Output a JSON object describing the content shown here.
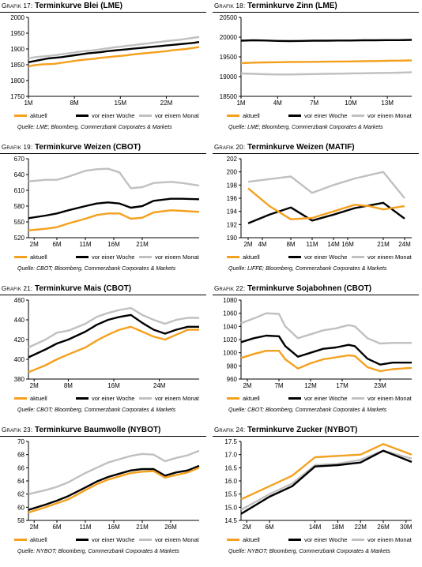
{
  "colors": {
    "aktuell": "#f5a01e",
    "woche": "#000000",
    "monat": "#c0c0c0"
  },
  "legend_labels": [
    "aktuell",
    "vor einer Woche",
    "vor einem Monat"
  ],
  "chart_data": [
    {
      "type": "line",
      "prefix": "Grafik 17:",
      "title": "Terminkurve Blei (LME)",
      "source": "Quelle: LME; Bloomberg, Commerzbank Corporates & Markets",
      "ylim": [
        1750,
        2000
      ],
      "yticks": [
        1750,
        1800,
        1850,
        1900,
        1950,
        2000
      ],
      "ytick_labels": [
        "1750",
        "1800",
        "1850",
        "1900",
        "1950",
        "2000"
      ],
      "xlim": [
        1,
        27
      ],
      "xticks": [
        1,
        8,
        15,
        22
      ],
      "xtick_labels": [
        "1M",
        "8M",
        "15M",
        "22M"
      ],
      "x": [
        1,
        2,
        3,
        4,
        5,
        6,
        7,
        8,
        9,
        10,
        11,
        12,
        13,
        14,
        15,
        16,
        17,
        18,
        19,
        20,
        21,
        22,
        23,
        24,
        25,
        26,
        27
      ],
      "series": [
        {
          "name": "aktuell",
          "values": [
            1845,
            1849,
            1851,
            1852,
            1853,
            1856,
            1859,
            1862,
            1865,
            1867,
            1869,
            1872,
            1874,
            1876,
            1878,
            1880,
            1883,
            1885,
            1887,
            1889,
            1891,
            1893,
            1896,
            1898,
            1900,
            1903,
            1906
          ]
        },
        {
          "name": "vor einer Woche",
          "values": [
            1858,
            1862,
            1866,
            1870,
            1872,
            1874,
            1877,
            1880,
            1883,
            1886,
            1888,
            1890,
            1893,
            1895,
            1897,
            1899,
            1901,
            1903,
            1905,
            1907,
            1909,
            1911,
            1913,
            1915,
            1917,
            1919,
            1922
          ]
        },
        {
          "name": "vor einem Monat",
          "values": [
            1870,
            1874,
            1876,
            1878,
            1880,
            1883,
            1886,
            1889,
            1892,
            1894,
            1896,
            1899,
            1902,
            1905,
            1907,
            1910,
            1912,
            1915,
            1917,
            1920,
            1922,
            1925,
            1927,
            1929,
            1932,
            1935,
            1938
          ]
        }
      ]
    },
    {
      "type": "line",
      "prefix": "Grafik 18:",
      "title": "Terminkurve Zinn (LME)",
      "source": "Quelle: LME; Bloomberg, Commerzbank Corporates & Markets",
      "ylim": [
        18500,
        20500
      ],
      "yticks": [
        18500,
        19000,
        19500,
        20000,
        20500
      ],
      "ytick_labels": [
        "18500",
        "19000",
        "19500",
        "20000",
        "20500"
      ],
      "xlim": [
        1,
        15
      ],
      "xticks": [
        1,
        4,
        7,
        10,
        13
      ],
      "xtick_labels": [
        "1M",
        "4M",
        "7M",
        "10M",
        "13M"
      ],
      "x": [
        1,
        2,
        3,
        4,
        5,
        6,
        7,
        8,
        9,
        10,
        11,
        12,
        13,
        14,
        15
      ],
      "series": [
        {
          "name": "aktuell",
          "values": [
            19340,
            19355,
            19360,
            19365,
            19370,
            19372,
            19375,
            19378,
            19382,
            19385,
            19390,
            19395,
            19400,
            19405,
            19410
          ]
        },
        {
          "name": "vor einer Woche",
          "values": [
            19910,
            19920,
            19915,
            19905,
            19900,
            19905,
            19910,
            19910,
            19915,
            19915,
            19920,
            19920,
            19925,
            19925,
            19930
          ]
        },
        {
          "name": "vor einem Monat",
          "values": [
            19080,
            19070,
            19060,
            19055,
            19055,
            19060,
            19065,
            19070,
            19075,
            19080,
            19085,
            19090,
            19095,
            19100,
            19110
          ]
        }
      ]
    },
    {
      "type": "line",
      "prefix": "Grafik 19:",
      "title": "Terminkurve Weizen (CBOT)",
      "source": "Quelle: CBOT; Bloomberg, Commerzbank Corporates & Markets",
      "ylim": [
        520,
        670
      ],
      "yticks": [
        520,
        550,
        580,
        610,
        640,
        670
      ],
      "ytick_labels": [
        "520",
        "550",
        "580",
        "610",
        "640",
        "670"
      ],
      "xlim": [
        1,
        31
      ],
      "xticks": [
        2,
        6,
        11,
        16,
        21
      ],
      "xtick_labels": [
        "2M",
        "6M",
        "11M",
        "16M",
        "21M"
      ],
      "x": [
        1,
        4,
        6,
        8,
        11,
        13,
        15,
        17,
        19,
        21,
        23,
        26,
        28,
        31
      ],
      "series": [
        {
          "name": "aktuell",
          "values": [
            534,
            537,
            540,
            547,
            556,
            563,
            566,
            566,
            556,
            558,
            568,
            572,
            571,
            569
          ]
        },
        {
          "name": "vor einer Woche",
          "values": [
            557,
            562,
            566,
            572,
            580,
            585,
            587,
            585,
            577,
            580,
            590,
            594,
            594,
            593
          ]
        },
        {
          "name": "vor einem Monat",
          "values": [
            627,
            630,
            630,
            636,
            647,
            650,
            651,
            644,
            614,
            616,
            624,
            626,
            624,
            619
          ]
        }
      ]
    },
    {
      "type": "line",
      "prefix": "Grafik 20:",
      "title": "Terminkurve Weizen (MATIF)",
      "source": "Quelle: LIFFE; Bloomberg, Commerzbank Corporates & Markets",
      "ylim": [
        190,
        202
      ],
      "yticks": [
        190,
        192,
        194,
        196,
        198,
        200,
        202
      ],
      "ytick_labels": [
        "190",
        "192",
        "194",
        "196",
        "198",
        "200",
        "202"
      ],
      "xlim": [
        1,
        25
      ],
      "xticks": [
        2,
        4,
        8,
        11,
        14,
        16,
        21,
        24
      ],
      "xtick_labels": [
        "2M",
        "4M",
        "8M",
        "11M",
        "14M",
        "16M",
        "21M",
        "24M"
      ],
      "x": [
        2,
        5,
        8,
        11,
        14,
        17,
        19,
        21,
        24
      ],
      "series": [
        {
          "name": "aktuell",
          "values": [
            197.5,
            194.8,
            192.8,
            193.0,
            194.0,
            195.0,
            194.8,
            194.3,
            194.8
          ]
        },
        {
          "name": "vor einer Woche",
          "values": [
            192.2,
            193.5,
            194.6,
            192.6,
            193.5,
            194.5,
            194.9,
            195.3,
            192.9
          ]
        },
        {
          "name": "vor einem Monat",
          "values": [
            198.5,
            198.9,
            199.3,
            196.8,
            198.0,
            199.0,
            199.5,
            200.0,
            196.0
          ]
        }
      ]
    },
    {
      "type": "line",
      "prefix": "Grafik 21:",
      "title": "Terminkurve Mais (CBOT)",
      "source": "Quelle: CBOT; Bloomberg, Commerzbank Corporates & Markets",
      "ylim": [
        380,
        460
      ],
      "yticks": [
        380,
        400,
        420,
        440,
        460
      ],
      "ytick_labels": [
        "380",
        "400",
        "420",
        "440",
        "460"
      ],
      "xlim": [
        1,
        31
      ],
      "xticks": [
        2,
        8,
        16,
        24
      ],
      "xtick_labels": [
        "2M",
        "8M",
        "16M",
        "24M"
      ],
      "x": [
        1,
        4,
        6,
        8,
        11,
        13,
        15,
        17,
        19,
        21,
        23,
        25,
        27,
        29,
        31
      ],
      "series": [
        {
          "name": "aktuell",
          "values": [
            387,
            394,
            400,
            405,
            412,
            419,
            425,
            430,
            433,
            428,
            423,
            420,
            425,
            430,
            430
          ]
        },
        {
          "name": "vor einer Woche",
          "values": [
            402,
            410,
            416,
            420,
            428,
            435,
            440,
            443,
            445,
            437,
            430,
            426,
            430,
            433,
            433
          ]
        },
        {
          "name": "vor einem Monat",
          "values": [
            412,
            420,
            427,
            429,
            436,
            443,
            447,
            450,
            452,
            445,
            440,
            436,
            440,
            442,
            442
          ]
        }
      ]
    },
    {
      "type": "line",
      "prefix": "Grafik 22:",
      "title": "Terminkurve Sojabohnen (CBOT)",
      "source": "Quelle: CBOT; Bloomberg, Commerzbank Corporates & Markets",
      "ylim": [
        960,
        1080
      ],
      "yticks": [
        960,
        980,
        1000,
        1020,
        1040,
        1060,
        1080
      ],
      "ytick_labels": [
        "960",
        "980",
        "1000",
        "1020",
        "1040",
        "1060",
        "1080"
      ],
      "xlim": [
        1,
        28
      ],
      "xticks": [
        2,
        7,
        12,
        17,
        23
      ],
      "xtick_labels": [
        "2M",
        "7M",
        "12M",
        "17M",
        "23M"
      ],
      "x": [
        1,
        3,
        5,
        7,
        8,
        10,
        12,
        14,
        16,
        18,
        19,
        21,
        23,
        25,
        28
      ],
      "series": [
        {
          "name": "aktuell",
          "values": [
            992,
            998,
            1003,
            1003,
            990,
            976,
            984,
            990,
            993,
            996,
            995,
            978,
            972,
            975,
            977
          ]
        },
        {
          "name": "vor einer Woche",
          "values": [
            1016,
            1022,
            1026,
            1025,
            1010,
            994,
            1000,
            1006,
            1008,
            1012,
            1010,
            991,
            982,
            985,
            985
          ]
        },
        {
          "name": "vor einem Monat",
          "values": [
            1045,
            1052,
            1060,
            1059,
            1040,
            1022,
            1028,
            1034,
            1037,
            1042,
            1040,
            1022,
            1014,
            1015,
            1015
          ]
        }
      ]
    },
    {
      "type": "line",
      "prefix": "Grafik 23:",
      "title": "Terminkurve Baumwolle (NYBOT)",
      "source": "Quelle: NYBOT; Bloomberg, Commerzbank Corporates & Markets",
      "ylim": [
        58,
        70
      ],
      "yticks": [
        58,
        60,
        62,
        64,
        66,
        68,
        70
      ],
      "ytick_labels": [
        "58",
        "60",
        "62",
        "64",
        "66",
        "68",
        "70"
      ],
      "xlim": [
        1,
        31
      ],
      "xticks": [
        2,
        6,
        11,
        16,
        21,
        26
      ],
      "xtick_labels": [
        "2M",
        "6M",
        "11M",
        "16M",
        "21M",
        "26M"
      ],
      "x": [
        1,
        4,
        6,
        8,
        11,
        13,
        15,
        17,
        19,
        21,
        23,
        25,
        27,
        29,
        31
      ],
      "series": [
        {
          "name": "aktuell",
          "values": [
            59.2,
            60.0,
            60.6,
            61.2,
            62.6,
            63.5,
            64.2,
            64.7,
            65.2,
            65.4,
            65.5,
            64.5,
            64.9,
            65.3,
            66.0
          ]
        },
        {
          "name": "vor einer Woche",
          "values": [
            59.6,
            60.4,
            61.0,
            61.7,
            63.0,
            63.9,
            64.6,
            65.1,
            65.6,
            65.8,
            65.8,
            64.8,
            65.3,
            65.6,
            66.3
          ]
        },
        {
          "name": "vor einem Monat",
          "values": [
            62.0,
            62.6,
            63.1,
            63.8,
            65.2,
            66.0,
            66.8,
            67.3,
            67.8,
            68.1,
            68.0,
            67.0,
            67.5,
            67.9,
            68.6
          ]
        }
      ]
    },
    {
      "type": "line",
      "prefix": "Grafik 24:",
      "title": "Terminkurve Zucker (NYBOT)",
      "source": "Quelle: NYBOT; Bloomberg, Commerzbank Corporates & Markets",
      "ylim": [
        14.5,
        17.5
      ],
      "yticks": [
        14.5,
        15.0,
        15.5,
        16.0,
        16.5,
        17.0,
        17.5
      ],
      "ytick_labels": [
        "14.5",
        "15.0",
        "15.5",
        "16.0",
        "16.5",
        "17.0",
        "17.5"
      ],
      "xlim": [
        1,
        31
      ],
      "xticks": [
        2,
        6,
        14,
        18,
        22,
        26,
        30
      ],
      "xtick_labels": [
        "2M",
        "6M",
        "14M",
        "18M",
        "22M",
        "26M",
        "30M"
      ],
      "x": [
        1,
        6,
        10,
        14,
        18,
        22,
        26,
        31
      ],
      "series": [
        {
          "name": "aktuell",
          "values": [
            15.3,
            15.8,
            16.2,
            16.9,
            16.95,
            17.0,
            17.4,
            17.0
          ]
        },
        {
          "name": "vor einer Woche",
          "values": [
            14.75,
            15.4,
            15.8,
            16.55,
            16.6,
            16.7,
            17.15,
            16.72
          ]
        },
        {
          "name": "vor einem Monat",
          "values": [
            14.9,
            15.5,
            15.9,
            16.6,
            16.65,
            16.8,
            17.15,
            16.85
          ]
        }
      ]
    }
  ]
}
